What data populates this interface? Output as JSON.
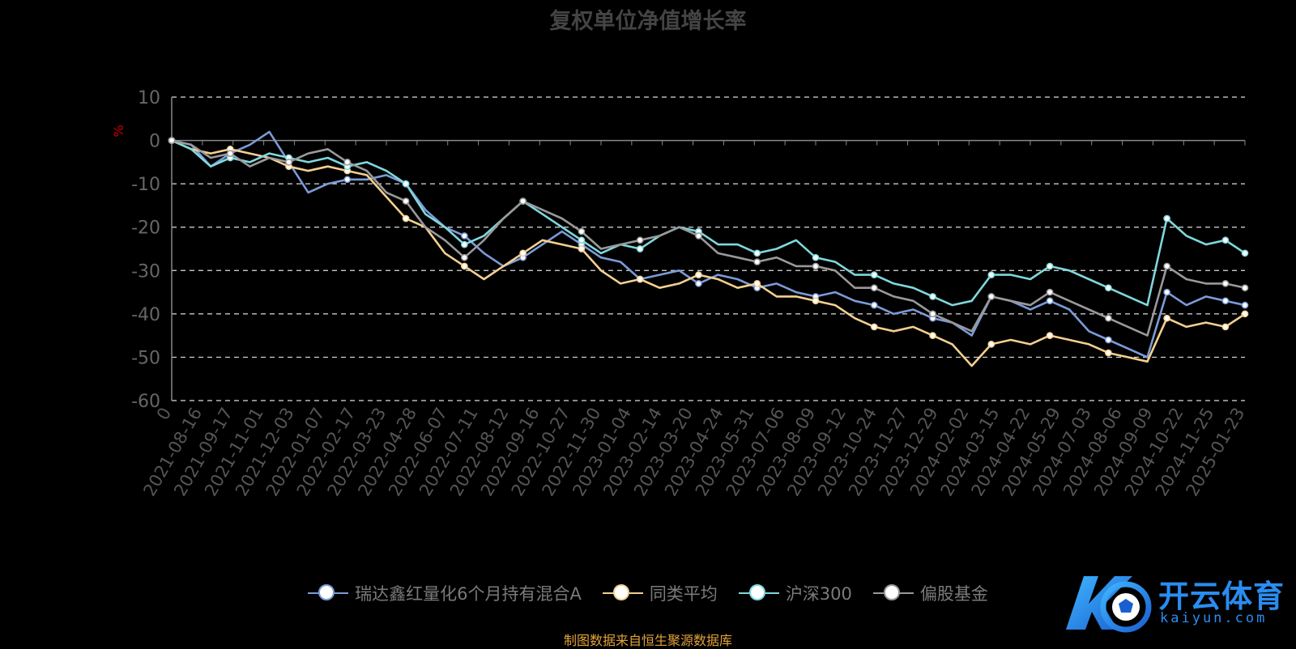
{
  "chart_data": {
    "type": "line",
    "title": "复权单位净值增长率",
    "ylabel": "%",
    "ylim": [
      -60,
      10
    ],
    "yticks": [
      10,
      0,
      -10,
      -20,
      -30,
      -40,
      -50,
      -60
    ],
    "grid": true,
    "legend_position": "bottom",
    "x_tick_labels": [
      "0",
      "2021-08-16",
      "2021-09-17",
      "2021-11-01",
      "2021-12-03",
      "2022-01-07",
      "2022-02-17",
      "2022-03-23",
      "2022-04-28",
      "2022-06-07",
      "2022-07-11",
      "2022-08-12",
      "2022-09-16",
      "2022-10-27",
      "2022-11-30",
      "2023-01-04",
      "2023-02-14",
      "2023-03-20",
      "2023-04-24",
      "2023-05-31",
      "2023-07-06",
      "2023-08-09",
      "2023-09-12",
      "2023-10-24",
      "2023-11-27",
      "2023-12-29",
      "2024-02-02",
      "2024-03-15",
      "2024-04-22",
      "2024-05-29",
      "2024-07-03",
      "2024-08-06",
      "2024-09-09",
      "2024-10-22",
      "2024-11-25",
      "2025-01-23"
    ],
    "series": [
      {
        "name": "瑞达鑫红量化6个月持有混合A",
        "color": "#7b9bd8",
        "values": [
          0,
          -1,
          -6,
          -3,
          -1,
          2,
          -5,
          -12,
          -10,
          -9,
          -9,
          -8,
          -10,
          -16,
          -20,
          -22,
          -26,
          -29,
          -27,
          -24,
          -21,
          -24,
          -27,
          -28,
          -32,
          -31,
          -30,
          -33,
          -31,
          -32,
          -34,
          -33,
          -35,
          -36,
          -35,
          -37,
          -38,
          -40,
          -39,
          -41,
          -42,
          -45,
          -36,
          -37,
          -39,
          -37,
          -39,
          -44,
          -46,
          -48,
          -50,
          -35,
          -38,
          -36,
          -37,
          -38
        ]
      },
      {
        "name": "同类平均",
        "color": "#f3cf90",
        "values": [
          0,
          -2,
          -3,
          -2,
          -3,
          -4,
          -6,
          -7,
          -6,
          -7,
          -8,
          -13,
          -18,
          -20,
          -26,
          -29,
          -32,
          -29,
          -26,
          -23,
          -24,
          -25,
          -30,
          -33,
          -32,
          -34,
          -33,
          -31,
          -32,
          -34,
          -33,
          -36,
          -36,
          -37,
          -38,
          -41,
          -43,
          -44,
          -43,
          -45,
          -47,
          -52,
          -47,
          -46,
          -47,
          -45,
          -46,
          -47,
          -49,
          -50,
          -51,
          -41,
          -43,
          -42,
          -43,
          -40
        ]
      },
      {
        "name": "沪深300",
        "color": "#7fd8dc",
        "values": [
          0,
          -2,
          -6,
          -4,
          -5,
          -3,
          -4,
          -5,
          -4,
          -6,
          -5,
          -7,
          -10,
          -17,
          -20,
          -24,
          -22,
          -18,
          -14,
          -17,
          -20,
          -23,
          -26,
          -24,
          -25,
          -22,
          -20,
          -21,
          -24,
          -24,
          -26,
          -25,
          -23,
          -27,
          -28,
          -31,
          -31,
          -33,
          -34,
          -36,
          -38,
          -37,
          -31,
          -31,
          -32,
          -29,
          -30,
          -32,
          -34,
          -36,
          -38,
          -18,
          -22,
          -24,
          -23,
          -26
        ]
      },
      {
        "name": "偏股基金",
        "color": "#999999",
        "values": [
          0,
          -1,
          -4,
          -3,
          -6,
          -4,
          -5,
          -3,
          -2,
          -5,
          -7,
          -12,
          -14,
          -20,
          -23,
          -27,
          -23,
          -18,
          -14,
          -16,
          -18,
          -21,
          -25,
          -24,
          -23,
          -22,
          -20,
          -22,
          -26,
          -27,
          -28,
          -27,
          -29,
          -29,
          -30,
          -34,
          -34,
          -36,
          -37,
          -40,
          -42,
          -44,
          -36,
          -37,
          -38,
          -35,
          -37,
          -39,
          -41,
          -43,
          -45,
          -29,
          -32,
          -33,
          -33,
          -34
        ]
      }
    ]
  },
  "legend": {
    "items": [
      {
        "label": "瑞达鑫红量化6个月持有混合A",
        "color": "#7b9bd8"
      },
      {
        "label": "同类平均",
        "color": "#f3cf90"
      },
      {
        "label": "沪深300",
        "color": "#7fd8dc"
      },
      {
        "label": "偏股基金",
        "color": "#999999"
      }
    ]
  },
  "source_note": "制图数据来自恒生聚源数据库",
  "watermark": {
    "brand": "开云体育",
    "domain": "kaiyun.com"
  }
}
